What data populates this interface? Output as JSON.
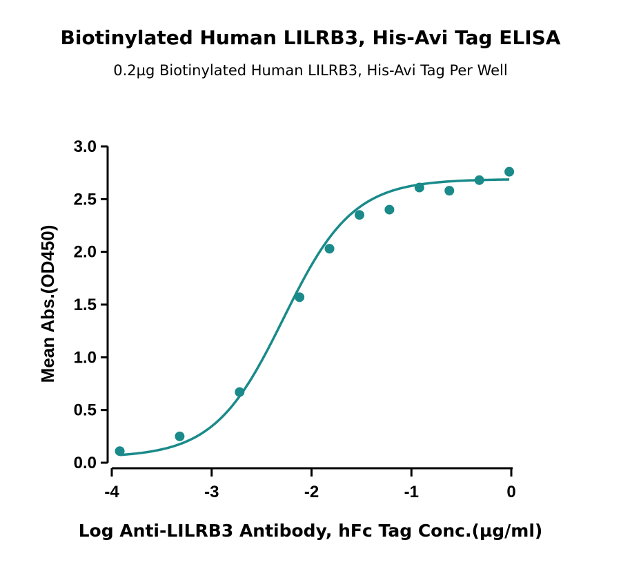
{
  "chart_data": {
    "type": "scatter",
    "title": "Biotinylated Human LILRB3, His-Avi Tag ELISA",
    "subtitle": "0.2µg Biotinylated Human LILRB3, His-Avi Tag Per Well",
    "xlabel": "Log Anti-LILRB3 Antibody, hFc Tag Conc.(µg/ml)",
    "ylabel": "Mean Abs.(OD450)",
    "xlim": [
      -4,
      0
    ],
    "ylim": [
      0,
      3.0
    ],
    "x_ticks": [
      -4,
      -3,
      -2,
      -1,
      0
    ],
    "x_tick_labels": [
      "-4",
      "-3",
      "-2",
      "-1",
      "0"
    ],
    "y_ticks": [
      0,
      0.5,
      1.0,
      1.5,
      2.0,
      2.5,
      3.0
    ],
    "y_tick_labels": [
      "0.0",
      "0.5",
      "1.0",
      "1.5",
      "2.0",
      "2.5",
      "3.0"
    ],
    "grid": false,
    "series": [
      {
        "x": [
          -3.92,
          -3.32,
          -2.72,
          -2.12,
          -1.82,
          -1.52,
          -1.22,
          -0.92,
          -0.62,
          -0.32,
          -0.02
        ],
        "y": [
          0.11,
          0.25,
          0.67,
          1.57,
          2.03,
          2.35,
          2.4,
          2.61,
          2.58,
          2.68,
          2.76
        ],
        "color": "#1a8a8a",
        "fit": {
          "model": "4PL",
          "bottom": 0.05,
          "top": 2.69,
          "logEC50": -2.28,
          "hill": 1.25
        }
      }
    ]
  }
}
